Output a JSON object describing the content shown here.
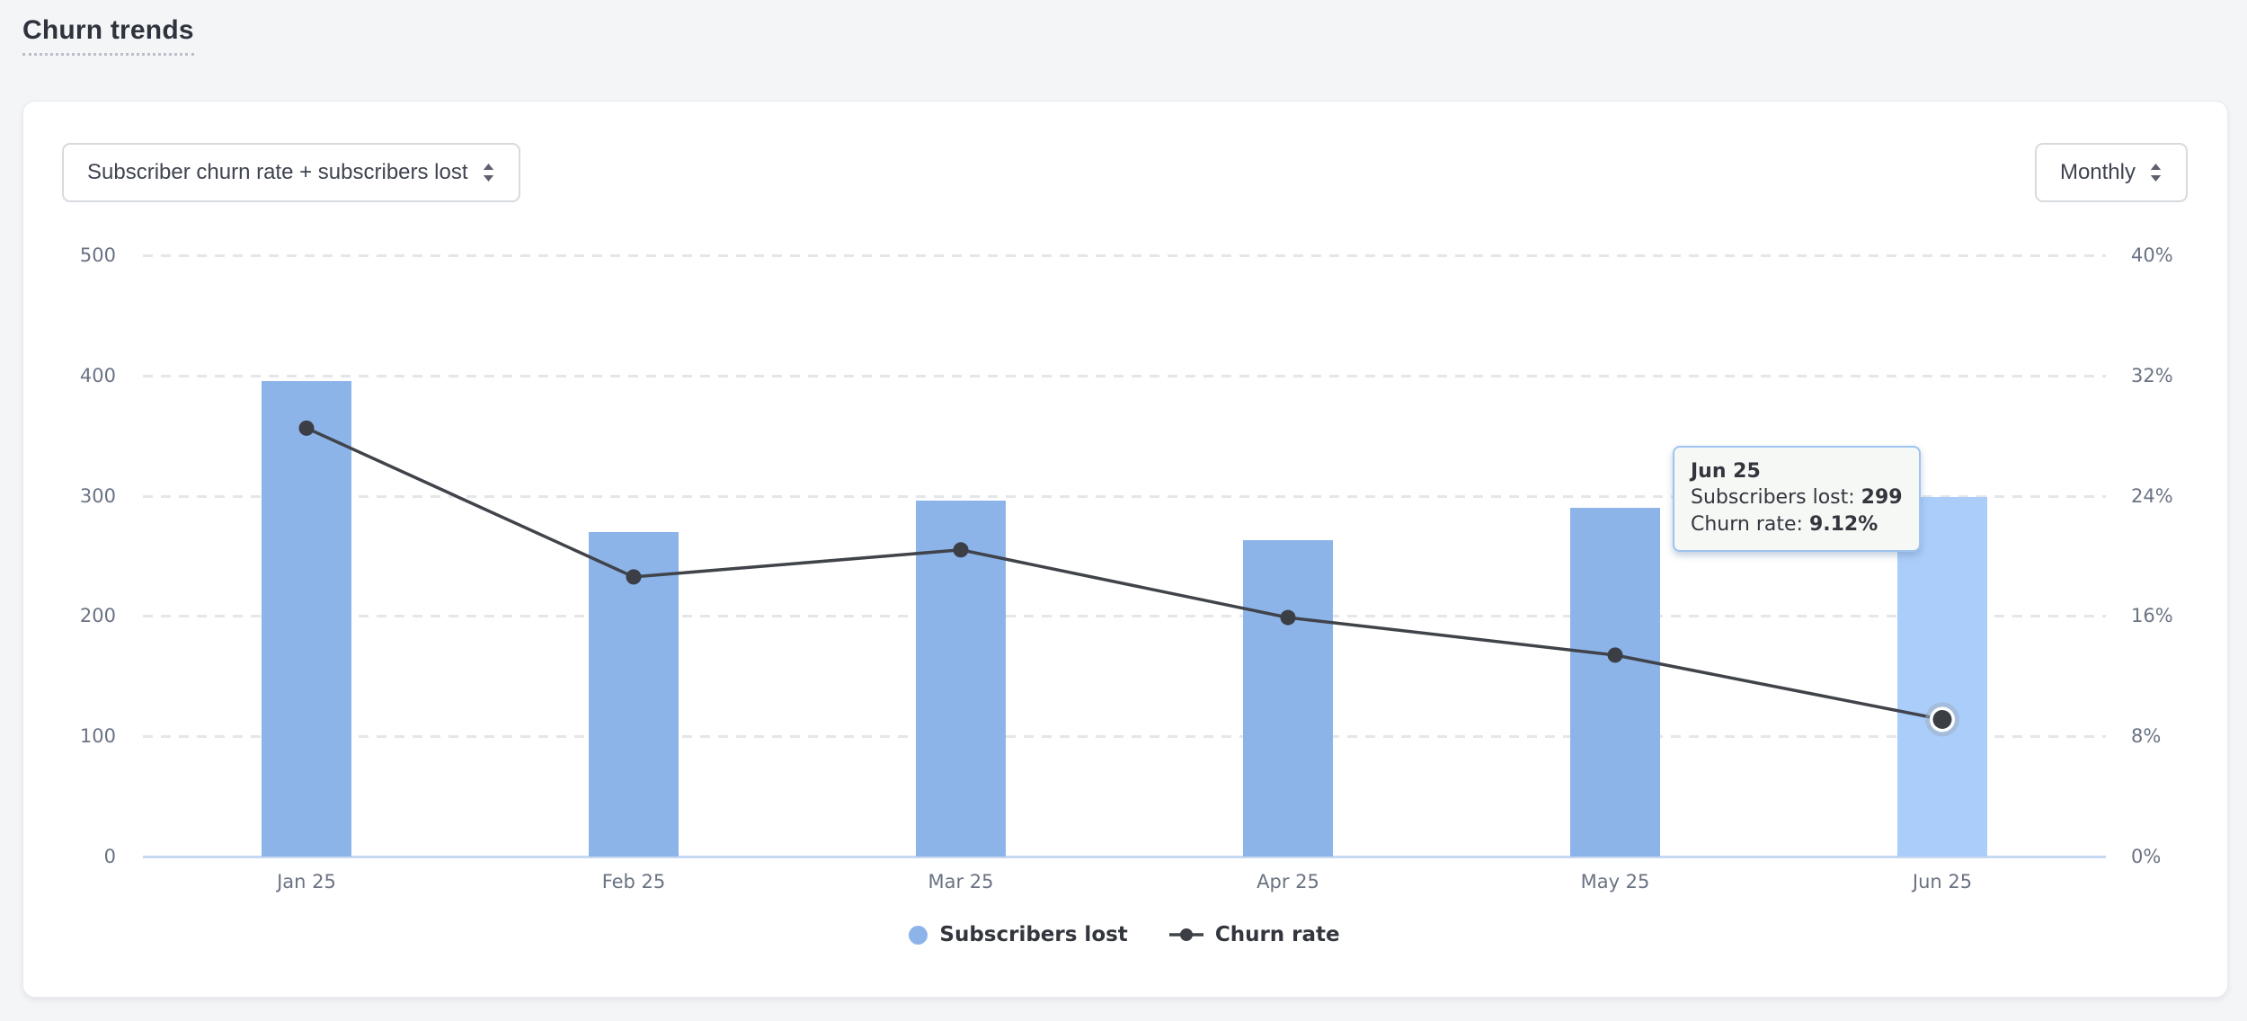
{
  "title": {
    "text": "Churn trends"
  },
  "controls": {
    "metric_select": {
      "value": "Subscriber churn rate + subscribers lost"
    },
    "interval_select": {
      "value": "Monthly"
    }
  },
  "chart_data": {
    "type": "combo-bar-line",
    "categories": [
      "Jan 25",
      "Feb 25",
      "Mar 25",
      "Apr 25",
      "May 25",
      "Jun 25"
    ],
    "series": [
      {
        "name": "Subscribers lost",
        "type": "bar",
        "axis": "left",
        "values": [
          395,
          270,
          296,
          263,
          290,
          299
        ]
      },
      {
        "name": "Churn rate",
        "type": "line",
        "axis": "right",
        "values": [
          28.5,
          18.6,
          20.4,
          15.9,
          13.4,
          9.12
        ]
      }
    ],
    "left_axis": {
      "min": 0,
      "max": 500,
      "ticks": [
        0,
        100,
        200,
        300,
        400,
        500
      ]
    },
    "right_axis": {
      "min": 0,
      "max": 40,
      "ticks": [
        "0%",
        "8%",
        "16%",
        "24%",
        "32%",
        "40%"
      ]
    },
    "grid": "dashed-horizontal",
    "legend_position": "bottom-center",
    "highlight_index": 5,
    "colors": {
      "bar": "#8db4e9",
      "bar_highlighted": "#abcdf9",
      "line": "#40434a",
      "point": "#3b3e45",
      "highlight_halo": "#9fb1c4",
      "baseline": "#c7d9f2",
      "gridline": "#e4e6e9"
    }
  },
  "tooltip": {
    "title": "Jun 25",
    "rows": [
      {
        "label": "Subscribers lost: ",
        "value": "299"
      },
      {
        "label": "Churn rate: ",
        "value": "9.12%"
      }
    ]
  },
  "legend": {
    "items": [
      {
        "label": "Subscribers lost",
        "marker": "circle"
      },
      {
        "label": "Churn rate",
        "marker": "line-dot"
      }
    ]
  }
}
